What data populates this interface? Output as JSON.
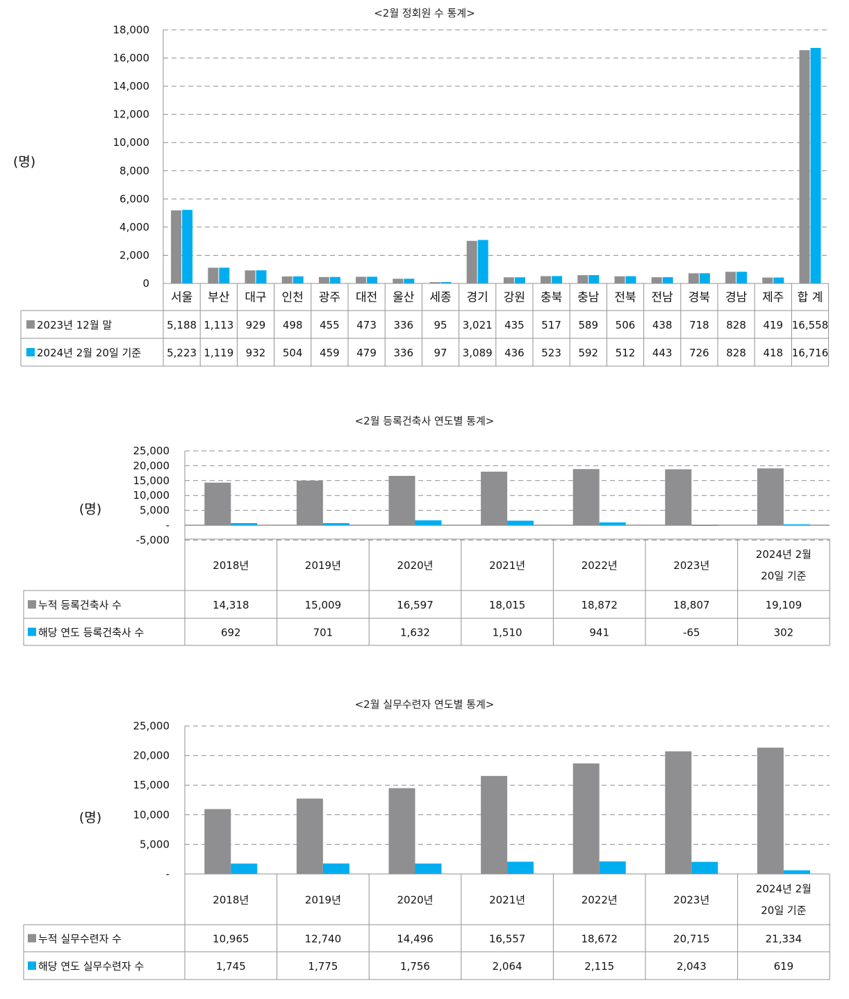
{
  "colors": {
    "gray": "#8f8f91",
    "blue": "#00aeef",
    "grid": "#8c8c8c",
    "border": "#909090"
  },
  "chart_data": [
    {
      "type": "bar",
      "title": "<2월 정회원 수 통계>",
      "ylabel": "(명)",
      "ylim": [
        0,
        18000
      ],
      "yticks": [
        0,
        2000,
        4000,
        6000,
        8000,
        10000,
        12000,
        14000,
        16000,
        18000
      ],
      "ytick_labels": [
        "0",
        "2,000",
        "4,000",
        "6,000",
        "8,000",
        "10,000",
        "12,000",
        "14,000",
        "16,000",
        "18,000"
      ],
      "categories": [
        "서울",
        "부산",
        "대구",
        "인천",
        "광주",
        "대전",
        "울산",
        "세종",
        "경기",
        "강원",
        "충북",
        "충남",
        "전북",
        "전남",
        "경북",
        "경남",
        "제주",
        "합 계"
      ],
      "series": [
        {
          "name": "2023년 12월 말",
          "color": "gray",
          "values": [
            5188,
            1113,
            929,
            498,
            455,
            473,
            336,
            95,
            3021,
            435,
            517,
            589,
            506,
            438,
            718,
            828,
            419,
            16558
          ],
          "labels": [
            "5,188",
            "1,113",
            "929",
            "498",
            "455",
            "473",
            "336",
            "95",
            "3,021",
            "435",
            "517",
            "589",
            "506",
            "438",
            "718",
            "828",
            "419",
            "16,558"
          ]
        },
        {
          "name": "2024년 2월 20일 기준",
          "color": "blue",
          "values": [
            5223,
            1119,
            932,
            504,
            459,
            479,
            336,
            97,
            3089,
            436,
            523,
            592,
            512,
            443,
            726,
            828,
            418,
            16716
          ],
          "labels": [
            "5,223",
            "1,119",
            "932",
            "504",
            "459",
            "479",
            "336",
            "97",
            "3,089",
            "436",
            "523",
            "592",
            "512",
            "443",
            "726",
            "828",
            "418",
            "16,716"
          ]
        }
      ]
    },
    {
      "type": "bar",
      "title": "<2월 등록건축사 연도별 통계>",
      "ylabel": "(명)",
      "ylim": [
        -5000,
        25000
      ],
      "yticks": [
        -5000,
        0,
        5000,
        10000,
        15000,
        20000,
        25000
      ],
      "ytick_labels": [
        "-5,000",
        "-",
        "5,000",
        "10,000",
        "15,000",
        "20,000",
        "25,000"
      ],
      "categories": [
        "2018년",
        "2019년",
        "2020년",
        "2021년",
        "2022년",
        "2023년",
        "2024년 2월|20일 기준"
      ],
      "series": [
        {
          "name": "누적 등록건축사 수",
          "color": "gray",
          "values": [
            14318,
            15009,
            16597,
            18015,
            18872,
            18807,
            19109
          ],
          "labels": [
            "14,318",
            "15,009",
            "16,597",
            "18,015",
            "18,872",
            "18,807",
            "19,109"
          ]
        },
        {
          "name": "해당 연도 등록건축사 수",
          "color": "blue",
          "values": [
            692,
            701,
            1632,
            1510,
            941,
            -65,
            302
          ],
          "labels": [
            "692",
            "701",
            "1,632",
            "1,510",
            "941",
            "-65",
            "302"
          ]
        }
      ]
    },
    {
      "type": "bar",
      "title": "<2월 실무수련자 연도별 통계>",
      "ylabel": "(명)",
      "ylim": [
        0,
        25000
      ],
      "yticks": [
        0,
        5000,
        10000,
        15000,
        20000,
        25000
      ],
      "ytick_labels": [
        "-",
        "5,000",
        "10,000",
        "15,000",
        "20,000",
        "25,000"
      ],
      "categories": [
        "2018년",
        "2019년",
        "2020년",
        "2021년",
        "2022년",
        "2023년",
        "2024년 2월|20일 기준"
      ],
      "series": [
        {
          "name": "누적 실무수련자 수",
          "color": "gray",
          "values": [
            10965,
            12740,
            14496,
            16557,
            18672,
            20715,
            21334
          ],
          "labels": [
            "10,965",
            "12,740",
            "14,496",
            "16,557",
            "18,672",
            "20,715",
            "21,334"
          ]
        },
        {
          "name": "해당 연도 실무수련자 수",
          "color": "blue",
          "values": [
            1745,
            1775,
            1756,
            2064,
            2115,
            2043,
            619
          ],
          "labels": [
            "1,745",
            "1,775",
            "1,756",
            "2,064",
            "2,115",
            "2,043",
            "619"
          ]
        }
      ]
    }
  ]
}
